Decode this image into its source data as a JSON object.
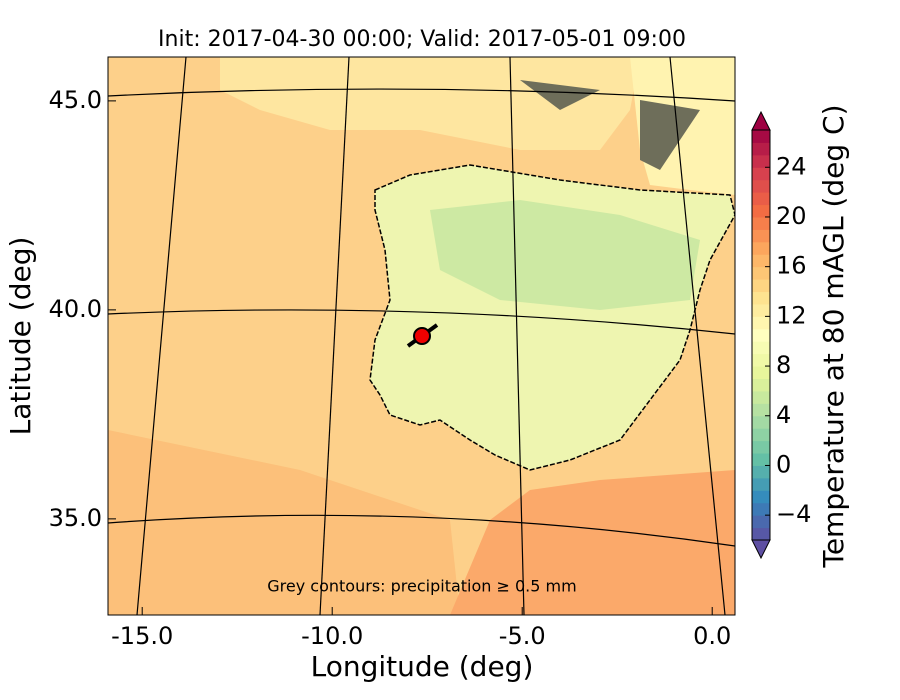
{
  "chart_data": {
    "type": "map",
    "title": "Init: 2017-04-30 00:00; Valid: 2017-05-01 09:00",
    "x_label": "Longitude (deg)",
    "y_label": "Latitude (deg)",
    "annotation": "Grey contours: precipitation ≥ 0.5 mm",
    "xlim": [
      -15.9,
      0.6
    ],
    "xticks": [
      {
        "value": -15,
        "label": "-15.0"
      },
      {
        "value": -10,
        "label": "-10.0"
      },
      {
        "value": -5,
        "label": "-5.0"
      },
      {
        "value": 0,
        "label": "0.0"
      }
    ],
    "ylim": [
      32.7,
      46.05
    ],
    "yticks": [
      {
        "value": 35,
        "label": "35.0"
      },
      {
        "value": 40,
        "label": "40.0"
      },
      {
        "value": 45,
        "label": "45.0"
      }
    ],
    "colorbar": {
      "label": "Temperature at 80 mAGL (deg C)",
      "clim": [
        -6,
        27
      ],
      "ticks": [
        {
          "value": -4,
          "label": "−4"
        },
        0,
        4,
        8,
        12,
        16,
        20,
        24
      ],
      "colormap": [
        "#5e4fa2",
        "#3288bd",
        "#66c2a5",
        "#abdda4",
        "#e6f598",
        "#ffffbf",
        "#fee08b",
        "#fdae61",
        "#f46d43",
        "#d53e4f",
        "#9e0142"
      ]
    }
  }
}
